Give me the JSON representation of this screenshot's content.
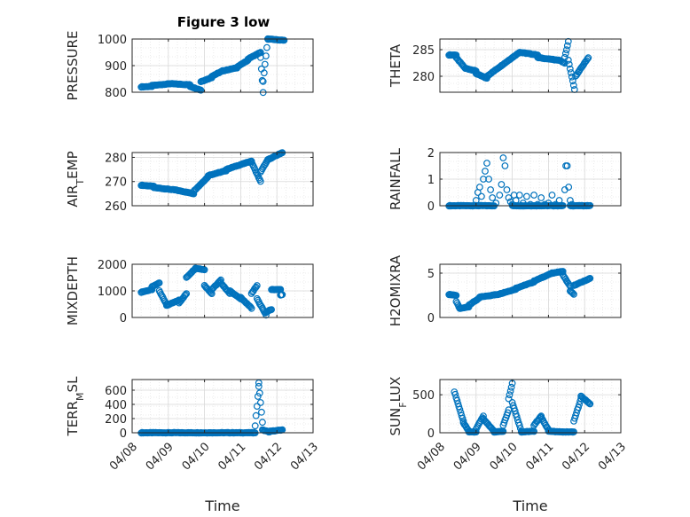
{
  "figure": {
    "title": "Figure 3 low"
  },
  "colors": {
    "marker": "#0072BD",
    "grid": "#e6e6e6",
    "axis": "#262626"
  },
  "chart_data": [
    {
      "type": "scatter",
      "ylabel": "PRESSURE",
      "ylim": [
        800,
        1000
      ],
      "yticks": [
        800,
        900,
        1000
      ],
      "segments": [
        {
          "x0": 0.25,
          "x1": 0.55,
          "y0": 820,
          "y1": 822
        },
        {
          "x0": 0.55,
          "x1": 1.05,
          "y0": 825,
          "y1": 832
        },
        {
          "x0": 1.05,
          "x1": 1.6,
          "y0": 832,
          "y1": 828
        },
        {
          "x0": 1.6,
          "x1": 1.9,
          "y0": 822,
          "y1": 808
        },
        {
          "x0": 1.9,
          "x1": 2.2,
          "y0": 840,
          "y1": 855
        },
        {
          "x0": 2.2,
          "x1": 2.5,
          "y0": 860,
          "y1": 880
        },
        {
          "x0": 2.5,
          "x1": 2.9,
          "y0": 880,
          "y1": 892
        },
        {
          "x0": 2.9,
          "x1": 3.2,
          "y0": 895,
          "y1": 920
        },
        {
          "x0": 3.2,
          "x1": 3.55,
          "y0": 925,
          "y1": 950
        },
        {
          "x0": 3.55,
          "x1": 3.62,
          "y0": 930,
          "y1": 800
        },
        {
          "x0": 3.62,
          "x1": 3.75,
          "y0": 840,
          "y1": 1000
        },
        {
          "x0": 3.75,
          "x1": 4.2,
          "y0": 1000,
          "y1": 995
        }
      ]
    },
    {
      "type": "scatter",
      "ylabel": "THETA",
      "ylim": [
        277,
        287
      ],
      "yticks": [
        280,
        285
      ],
      "segments": [
        {
          "x0": 0.25,
          "x1": 0.45,
          "y0": 284,
          "y1": 284
        },
        {
          "x0": 0.45,
          "x1": 0.7,
          "y0": 283.5,
          "y1": 281.5
        },
        {
          "x0": 0.7,
          "x1": 1.0,
          "y0": 281.5,
          "y1": 281
        },
        {
          "x0": 1.0,
          "x1": 1.3,
          "y0": 280.5,
          "y1": 279.6
        },
        {
          "x0": 1.3,
          "x1": 1.7,
          "y0": 280,
          "y1": 282
        },
        {
          "x0": 1.7,
          "x1": 2.2,
          "y0": 282,
          "y1": 284.5
        },
        {
          "x0": 2.2,
          "x1": 2.7,
          "y0": 284.5,
          "y1": 284
        },
        {
          "x0": 2.7,
          "x1": 3.3,
          "y0": 283.5,
          "y1": 283
        },
        {
          "x0": 3.3,
          "x1": 3.45,
          "y0": 283,
          "y1": 282.5
        },
        {
          "x0": 3.45,
          "x1": 3.55,
          "y0": 283.5,
          "y1": 286.5
        },
        {
          "x0": 3.55,
          "x1": 3.72,
          "y0": 283,
          "y1": 277.5
        },
        {
          "x0": 3.75,
          "x1": 4.1,
          "y0": 280,
          "y1": 283.5
        }
      ]
    },
    {
      "type": "scatter",
      "ylabel_main": "AIR",
      "ylabel_sub": "T",
      "ylabel_rest": "EMP",
      "ylim": [
        260,
        282
      ],
      "yticks": [
        260,
        270,
        280
      ],
      "segments": [
        {
          "x0": 0.25,
          "x1": 0.6,
          "y0": 268.5,
          "y1": 268
        },
        {
          "x0": 0.6,
          "x1": 1.2,
          "y0": 267.5,
          "y1": 266.5
        },
        {
          "x0": 1.2,
          "x1": 1.7,
          "y0": 266.5,
          "y1": 265
        },
        {
          "x0": 1.7,
          "x1": 2.1,
          "y0": 266,
          "y1": 272
        },
        {
          "x0": 2.1,
          "x1": 2.6,
          "y0": 272.5,
          "y1": 274.5
        },
        {
          "x0": 2.6,
          "x1": 3.3,
          "y0": 275,
          "y1": 278.5
        },
        {
          "x0": 3.3,
          "x1": 3.55,
          "y0": 278,
          "y1": 270
        },
        {
          "x0": 3.55,
          "x1": 3.75,
          "y0": 274,
          "y1": 279
        },
        {
          "x0": 3.75,
          "x1": 4.15,
          "y0": 279,
          "y1": 282
        }
      ]
    },
    {
      "type": "scatter",
      "ylabel": "RAINFALL",
      "ylim": [
        0,
        2
      ],
      "yticks": [
        0,
        1,
        2
      ],
      "segments": [
        {
          "x0": 0.25,
          "x1": 0.9,
          "y0": 0,
          "y1": 0
        },
        {
          "x0": 0.9,
          "x1": 1.5,
          "y0": 0,
          "y1": 0
        }
      ],
      "points": [
        [
          1.0,
          0.2
        ],
        [
          1.05,
          0.5
        ],
        [
          1.1,
          0.7
        ],
        [
          1.15,
          0.35
        ],
        [
          1.2,
          1.0
        ],
        [
          1.25,
          1.3
        ],
        [
          1.3,
          1.6
        ],
        [
          1.35,
          1.0
        ],
        [
          1.4,
          0.6
        ],
        [
          1.45,
          0.3
        ],
        [
          1.55,
          0.1
        ],
        [
          1.65,
          0.4
        ],
        [
          1.7,
          0.8
        ],
        [
          1.75,
          1.8
        ],
        [
          1.8,
          1.5
        ],
        [
          1.85,
          0.6
        ],
        [
          1.9,
          0.3
        ],
        [
          1.95,
          0.15
        ],
        [
          2.0,
          0.05
        ],
        [
          2.05,
          0.4
        ],
        [
          2.1,
          0.2
        ],
        [
          2.2,
          0.4
        ],
        [
          2.3,
          0.1
        ],
        [
          2.4,
          0.35
        ],
        [
          2.5,
          0.05
        ],
        [
          2.6,
          0.4
        ],
        [
          2.7,
          0.05
        ],
        [
          2.8,
          0.3
        ],
        [
          2.9,
          0.05
        ],
        [
          3.0,
          0.1
        ],
        [
          3.1,
          0.4
        ],
        [
          3.2,
          0.05
        ],
        [
          3.3,
          0.2
        ],
        [
          3.45,
          0.6
        ],
        [
          3.48,
          1.5
        ],
        [
          3.52,
          1.5
        ],
        [
          3.56,
          0.7
        ],
        [
          3.6,
          0.2
        ],
        [
          3.65,
          0.05
        ]
      ],
      "segments2": [
        {
          "x0": 2.0,
          "x1": 3.4,
          "y0": 0,
          "y1": 0
        },
        {
          "x0": 3.6,
          "x1": 4.15,
          "y0": 0,
          "y1": 0
        }
      ]
    },
    {
      "type": "scatter",
      "ylabel": "MIXDEPTH",
      "ylim": [
        0,
        2000
      ],
      "yticks": [
        0,
        1000,
        2000
      ],
      "segments": [
        {
          "x0": 0.25,
          "x1": 0.55,
          "y0": 950,
          "y1": 1050
        },
        {
          "x0": 0.55,
          "x1": 0.75,
          "y0": 1150,
          "y1": 1300
        },
        {
          "x0": 0.75,
          "x1": 0.95,
          "y0": 1000,
          "y1": 500
        },
        {
          "x0": 0.95,
          "x1": 1.3,
          "y0": 450,
          "y1": 650
        },
        {
          "x0": 1.3,
          "x1": 1.5,
          "y0": 550,
          "y1": 900
        },
        {
          "x0": 1.5,
          "x1": 1.75,
          "y0": 1500,
          "y1": 1850
        },
        {
          "x0": 1.75,
          "x1": 2.0,
          "y0": 1850,
          "y1": 1800
        },
        {
          "x0": 2.0,
          "x1": 2.2,
          "y0": 1200,
          "y1": 900
        },
        {
          "x0": 2.2,
          "x1": 2.45,
          "y0": 1050,
          "y1": 1400
        },
        {
          "x0": 2.45,
          "x1": 2.7,
          "y0": 1300,
          "y1": 900
        },
        {
          "x0": 2.7,
          "x1": 3.0,
          "y0": 1000,
          "y1": 700
        },
        {
          "x0": 3.0,
          "x1": 3.3,
          "y0": 750,
          "y1": 350
        },
        {
          "x0": 3.3,
          "x1": 3.45,
          "y0": 900,
          "y1": 1200
        },
        {
          "x0": 3.45,
          "x1": 3.7,
          "y0": 700,
          "y1": 100
        },
        {
          "x0": 3.7,
          "x1": 3.85,
          "y0": 200,
          "y1": 300
        },
        {
          "x0": 3.85,
          "x1": 4.1,
          "y0": 1050,
          "y1": 1050
        },
        {
          "x0": 4.1,
          "x1": 4.15,
          "y0": 850,
          "y1": 850
        }
      ]
    },
    {
      "type": "scatter",
      "ylabel": "H2OMIXRA",
      "ylim": [
        0,
        6
      ],
      "yticks": [
        0,
        5
      ],
      "segments": [
        {
          "x0": 0.25,
          "x1": 0.45,
          "y0": 2.6,
          "y1": 2.5
        },
        {
          "x0": 0.45,
          "x1": 0.55,
          "y0": 1.8,
          "y1": 1.0
        },
        {
          "x0": 0.55,
          "x1": 0.8,
          "y0": 1.0,
          "y1": 1.2
        },
        {
          "x0": 0.8,
          "x1": 1.1,
          "y0": 1.4,
          "y1": 2.2
        },
        {
          "x0": 1.1,
          "x1": 1.6,
          "y0": 2.3,
          "y1": 2.6
        },
        {
          "x0": 1.6,
          "x1": 2.1,
          "y0": 2.6,
          "y1": 3.2
        },
        {
          "x0": 2.1,
          "x1": 2.6,
          "y0": 3.3,
          "y1": 4.0
        },
        {
          "x0": 2.6,
          "x1": 3.1,
          "y0": 4.1,
          "y1": 5.0
        },
        {
          "x0": 3.1,
          "x1": 3.4,
          "y0": 5.0,
          "y1": 5.2
        },
        {
          "x0": 3.4,
          "x1": 3.6,
          "y0": 4.8,
          "y1": 3.5
        },
        {
          "x0": 3.6,
          "x1": 3.7,
          "y0": 3.0,
          "y1": 2.6
        },
        {
          "x0": 3.7,
          "x1": 4.15,
          "y0": 3.6,
          "y1": 4.4
        }
      ]
    },
    {
      "type": "scatter",
      "ylabel_main": "TERR",
      "ylabel_sub": "M",
      "ylabel_rest": "SL",
      "ylim": [
        0,
        750
      ],
      "yticks": [
        0,
        200,
        400,
        600
      ],
      "segments": [
        {
          "x0": 0.25,
          "x1": 3.4,
          "y0": 0,
          "y1": 0
        },
        {
          "x0": 3.4,
          "x1": 3.5,
          "y0": 100,
          "y1": 650
        },
        {
          "x0": 3.5,
          "x1": 3.6,
          "y0": 700,
          "y1": 150
        },
        {
          "x0": 3.6,
          "x1": 3.8,
          "y0": 40,
          "y1": 10
        },
        {
          "x0": 3.8,
          "x1": 4.15,
          "y0": 20,
          "y1": 40
        }
      ]
    },
    {
      "type": "scatter",
      "ylabel_main": "SUN",
      "ylabel_sub": "F",
      "ylabel_rest": "LUX",
      "ylim": [
        0,
        700
      ],
      "yticks": [
        0,
        500
      ],
      "segments": [
        {
          "x0": 0.4,
          "x1": 0.65,
          "y0": 540,
          "y1": 150
        },
        {
          "x0": 0.65,
          "x1": 0.8,
          "y0": 130,
          "y1": 20
        },
        {
          "x0": 0.8,
          "x1": 1.0,
          "y0": 10,
          "y1": 10
        },
        {
          "x0": 1.0,
          "x1": 1.2,
          "y0": 50,
          "y1": 220
        },
        {
          "x0": 1.2,
          "x1": 1.5,
          "y0": 180,
          "y1": 20
        },
        {
          "x0": 1.5,
          "x1": 1.75,
          "y0": 10,
          "y1": 20
        },
        {
          "x0": 1.75,
          "x1": 1.9,
          "y0": 100,
          "y1": 300
        },
        {
          "x0": 1.9,
          "x1": 2.0,
          "y0": 450,
          "y1": 650
        },
        {
          "x0": 2.0,
          "x1": 2.25,
          "y0": 400,
          "y1": 20
        },
        {
          "x0": 2.25,
          "x1": 2.6,
          "y0": 10,
          "y1": 20
        },
        {
          "x0": 2.6,
          "x1": 2.8,
          "y0": 100,
          "y1": 220
        },
        {
          "x0": 2.8,
          "x1": 3.0,
          "y0": 200,
          "y1": 40
        },
        {
          "x0": 3.0,
          "x1": 3.4,
          "y0": 20,
          "y1": 10
        },
        {
          "x0": 3.4,
          "x1": 3.7,
          "y0": 10,
          "y1": 10
        },
        {
          "x0": 3.7,
          "x1": 3.9,
          "y0": 150,
          "y1": 450
        },
        {
          "x0": 3.9,
          "x1": 4.15,
          "y0": 480,
          "y1": 380
        }
      ]
    }
  ],
  "xaxis": {
    "label": "Time",
    "xlim": [
      0,
      5
    ],
    "ticks": [
      "04/08",
      "04/09",
      "04/10",
      "04/11",
      "04/12",
      "04/13"
    ]
  }
}
